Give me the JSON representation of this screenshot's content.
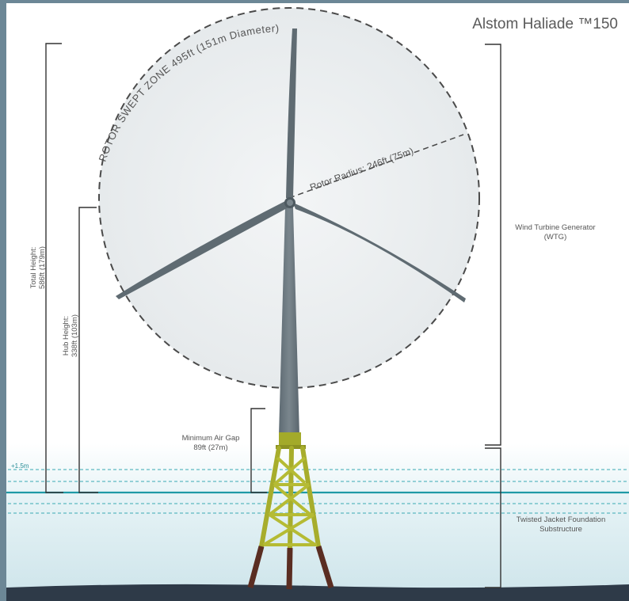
{
  "title": "Alstom Haliade ™150",
  "rotor_swept_zone": "ROTOR SWEPT ZONE 495ft (151m Diameter)",
  "rotor_radius": "Rotor Radius: 246ft (75m)",
  "total_height": {
    "line1": "Total Height:",
    "line2": "586ft (179m)"
  },
  "hub_height": {
    "line1": "Hub Height:",
    "line2": "338ft (103m)"
  },
  "air_gap": {
    "line1": "Minimum Air Gap",
    "line2": "89ft (27m)"
  },
  "wtg": {
    "line1": "Wind Turbine Generator",
    "line2": "(WTG)"
  },
  "foundation": {
    "line1": "Twisted Jacket Foundation",
    "line2": "Substructure"
  },
  "water_level_label": "+1.5m",
  "colors": {
    "background": "#ffffff",
    "rotor_disc": "#eceff1",
    "tower": "#6c7880",
    "jacket": "#a7ad2c",
    "piles": "#5a2d22",
    "water_line": "#2aa3ad",
    "sea_floor": "#2e3a48",
    "dimension_line": "#333333",
    "text": "#4a4a4a"
  }
}
